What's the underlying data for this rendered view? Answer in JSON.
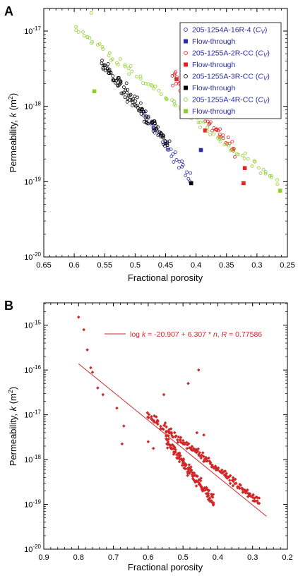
{
  "chart_data": [
    {
      "panel": "A",
      "type": "scatter",
      "xlabel": "Fractional porosity",
      "ylabel_main": "Permeability, ",
      "ylabel_var": "k",
      "ylabel_unit": " (m",
      "ylabel_sup": "2",
      "ylabel_close": ")",
      "xlim": [
        0.65,
        0.25
      ],
      "ylog": true,
      "ylim_exp": [
        -20,
        -16.7
      ],
      "xticks": [
        "0.65",
        "0.6",
        "0.55",
        "0.5",
        "0.45",
        "0.4",
        "0.35",
        "0.3",
        "0.25"
      ],
      "xtick_values": [
        0.65,
        0.6,
        0.55,
        0.5,
        0.45,
        0.4,
        0.35,
        0.3,
        0.25
      ],
      "ytick_exps": [
        -20,
        -19,
        -18,
        -17
      ],
      "ytick_base": "10",
      "ytick_sups": [
        "-20",
        "-19",
        "-18",
        "-17"
      ],
      "legend_position": "top-right",
      "series": [
        {
          "name": "205-1254A-16R-4",
          "cv": "CV",
          "marker": "open-circle",
          "color": "#2b2ba6",
          "trend": {
            "x0": 0.49,
            "y0": -18.05,
            "x1": 0.41,
            "y1": -18.95,
            "n": 40,
            "spread": 0.07
          }
        },
        {
          "name": "Flow-through",
          "marker": "square",
          "color": "#2b2ba6",
          "points": [
            [
              0.392,
              -18.58
            ]
          ]
        },
        {
          "name": "205-1255A-2R-CC",
          "cv": "CV",
          "marker": "open-circle",
          "color": "#e02424",
          "trend": {
            "x0": 0.44,
            "y0": -17.6,
            "x1": 0.335,
            "y1": -18.62,
            "n": 70,
            "spread": 0.08
          }
        },
        {
          "name": "Flow-through",
          "marker": "square",
          "color": "#e02424",
          "points": [
            [
              0.432,
              -17.64
            ],
            [
              0.385,
              -18.32
            ],
            [
              0.32,
              -18.82
            ],
            [
              0.322,
              -19.02
            ]
          ]
        },
        {
          "name": "205-1255A-3R-CC",
          "cv": "CV",
          "marker": "open-circle",
          "color": "#000000",
          "trend": {
            "x0": 0.555,
            "y0": -17.42,
            "x1": 0.445,
            "y1": -18.5,
            "n": 110,
            "spread": 0.07
          }
        },
        {
          "name": "Flow-through",
          "marker": "square",
          "color": "#000000",
          "points": [
            [
              0.408,
              -19.02
            ]
          ]
        },
        {
          "name": "205-1255A-4R-CC",
          "cv": "CV",
          "marker": "open-circle",
          "color": "#8fd12b",
          "trend": {
            "x0": 0.6,
            "y0": -16.96,
            "x1": 0.265,
            "y1": -19.02,
            "n": 90,
            "spread": 0.05
          },
          "extra": [
            [
              0.572,
              -16.76
            ]
          ]
        },
        {
          "name": "Flow-through",
          "marker": "square",
          "color": "#8fd12b",
          "points": [
            [
              0.567,
              -17.8
            ],
            [
              0.262,
              -19.12
            ]
          ]
        }
      ]
    },
    {
      "panel": "B",
      "type": "scatter",
      "xlabel": "Fractional porosity",
      "ylabel_main": "Permeability, ",
      "ylabel_var": "k",
      "ylabel_unit": " (m",
      "ylabel_sup": "2",
      "ylabel_close": ")",
      "xlim": [
        0.9,
        0.2
      ],
      "ylog": true,
      "ylim_exp": [
        -20,
        -14.5
      ],
      "xticks": [
        "0.9",
        "0.8",
        "0.7",
        "0.6",
        "0.5",
        "0.4",
        "0.3",
        "0.2"
      ],
      "xtick_values": [
        0.9,
        0.8,
        0.7,
        0.6,
        0.5,
        0.4,
        0.3,
        0.2
      ],
      "ytick_exps": [
        -20,
        -19,
        -18,
        -17,
        -16,
        -15
      ],
      "ytick_base": "10",
      "ytick_sups": [
        "-20",
        "-19",
        "-18",
        "-17",
        "-16",
        "-15"
      ],
      "legend_position": "top-right",
      "fit": {
        "label_pre": "log ",
        "label_k": "k",
        "label_mid": " = -20.907 + 6.307 * ",
        "label_n": "n",
        "label_post": ", ",
        "label_R": "R",
        "label_end": " = 0.77586",
        "intercept": -20.907,
        "slope": 6.307,
        "x_range": [
          0.8,
          0.26
        ]
      },
      "series": [
        {
          "name": "data",
          "marker": "diamond",
          "color": "#d02828",
          "points": [
            [
              0.8,
              -14.82
            ],
            [
              0.785,
              -15.1
            ],
            [
              0.775,
              -15.55
            ],
            [
              0.765,
              -15.95
            ],
            [
              0.76,
              -16.05
            ],
            [
              0.745,
              -16.4
            ],
            [
              0.73,
              -16.55
            ],
            [
              0.69,
              -16.85
            ],
            [
              0.67,
              -17.25
            ],
            [
              0.675,
              -17.65
            ],
            [
              0.6,
              -17.6
            ],
            [
              0.585,
              -17.75
            ],
            [
              0.555,
              -16.55
            ],
            [
              0.485,
              -16.3
            ],
            [
              0.455,
              -16.0
            ],
            [
              0.46,
              -17.4
            ],
            [
              0.44,
              -17.45
            ]
          ]
        },
        {
          "name": "band1",
          "marker": "diamond",
          "color": "#d02828",
          "trend": {
            "x0": 0.6,
            "y0": -17.0,
            "x1": 0.28,
            "y1": -18.95,
            "n": 170,
            "spread": 0.08
          }
        },
        {
          "name": "band2",
          "marker": "diamond",
          "color": "#d02828",
          "trend": {
            "x0": 0.55,
            "y0": -17.55,
            "x1": 0.41,
            "y1": -18.95,
            "n": 130,
            "spread": 0.1
          }
        }
      ]
    }
  ]
}
